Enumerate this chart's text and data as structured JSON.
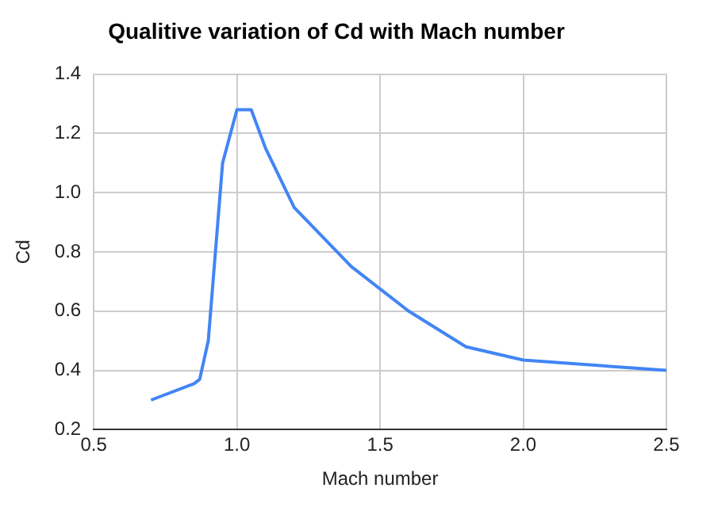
{
  "chart_data": {
    "type": "line",
    "title": "Qualitive variation of Cd with Mach number",
    "xlabel": "Mach number",
    "ylabel": "Cd",
    "x": [
      0.7,
      0.85,
      0.87,
      0.9,
      0.95,
      1.0,
      1.05,
      1.1,
      1.2,
      1.4,
      1.6,
      1.8,
      2.0,
      2.5
    ],
    "series": [
      {
        "color": "#4285f4",
        "values": [
          0.3,
          0.355,
          0.37,
          0.5,
          1.1,
          1.28,
          1.28,
          1.15,
          0.95,
          0.75,
          0.6,
          0.48,
          0.435,
          0.4
        ]
      }
    ],
    "xlim": [
      0.5,
      2.5
    ],
    "xticks": [
      {
        "value": 0.5,
        "label": "0.5"
      },
      {
        "value": 1,
        "label": "1.0"
      },
      {
        "value": 1.5,
        "label": "1.5"
      },
      {
        "value": 2,
        "label": "2.0"
      },
      {
        "value": 2.5,
        "label": "2.5"
      }
    ],
    "ylim": [
      0.2,
      1.4
    ],
    "yticks": [
      {
        "value": 0.2,
        "label": "0.2"
      },
      {
        "value": 0.4,
        "label": "0.4"
      },
      {
        "value": 0.6,
        "label": "0.6"
      },
      {
        "value": 0.8,
        "label": "0.8"
      },
      {
        "value": 1,
        "label": "1.0"
      },
      {
        "value": 1.2,
        "label": "1.2"
      },
      {
        "value": 1.4,
        "label": "1.4"
      }
    ],
    "grid": true,
    "legend": false,
    "marker": "none",
    "line_style": "solid"
  }
}
